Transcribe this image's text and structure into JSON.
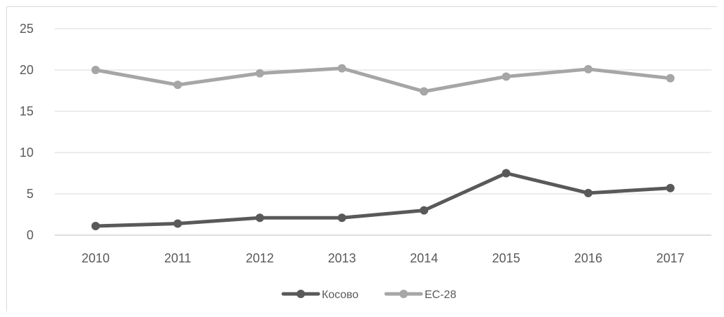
{
  "chart_data": {
    "type": "line",
    "title": "",
    "xlabel": "",
    "ylabel": "",
    "categories": [
      "2010",
      "2011",
      "2012",
      "2013",
      "2014",
      "2015",
      "2016",
      "2017"
    ],
    "ylim": [
      0,
      25
    ],
    "yticks": [
      0,
      5,
      10,
      15,
      20,
      25
    ],
    "grid": true,
    "legend_position": "bottom",
    "series": [
      {
        "name": "Косово",
        "color": "#595959",
        "values": [
          1.1,
          1.4,
          2.1,
          2.1,
          3.0,
          7.5,
          5.1,
          5.7
        ]
      },
      {
        "name": "ЕС-28",
        "color": "#a6a6a6",
        "values": [
          20.0,
          18.2,
          19.6,
          20.2,
          17.4,
          19.2,
          20.1,
          19.0
        ]
      }
    ]
  }
}
